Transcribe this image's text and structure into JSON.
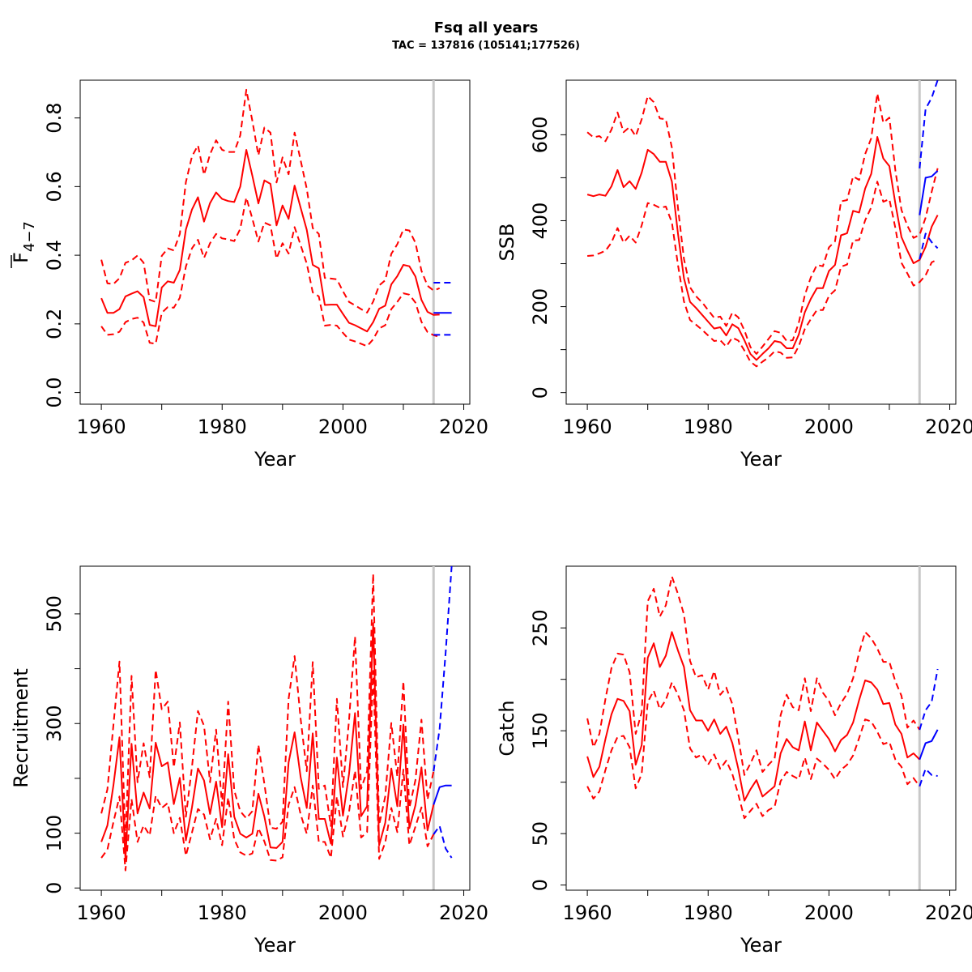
{
  "figure": {
    "title": "Fsq all years",
    "subtitle": "TAC = 137816 (105141;177526)"
  },
  "colors": {
    "history": "#ff0000",
    "forecast": "#0000ff",
    "vline": "#c8c8c8",
    "axis": "#000000"
  },
  "chart_data": [
    {
      "type": "line",
      "id": "fbar",
      "xlabel": "Year",
      "ylabel_main": "F",
      "ylabel_sub": "4−7",
      "xlim": [
        1956.5,
        2021
      ],
      "ylim": [
        -0.034,
        0.91
      ],
      "xticks": [
        "1960",
        "1980",
        "2000",
        "2020"
      ],
      "xtick_values": [
        1960,
        1980,
        2000,
        2020
      ],
      "minor_xticks": [
        1970,
        1990,
        2010
      ],
      "yticks": [
        "0.0",
        "0.2",
        "0.4",
        "0.6",
        "0.8"
      ],
      "ytick_values": [
        0,
        0.2,
        0.4,
        0.6,
        0.8
      ],
      "vline": 2015,
      "series": [
        {
          "role": "estimate",
          "x_start": 1960,
          "values": [
            0.275,
            0.232,
            0.232,
            0.243,
            0.28,
            0.288,
            0.295,
            0.278,
            0.197,
            0.193,
            0.306,
            0.324,
            0.32,
            0.357,
            0.475,
            0.533,
            0.569,
            0.498,
            0.552,
            0.583,
            0.564,
            0.558,
            0.555,
            0.6,
            0.707,
            0.632,
            0.551,
            0.618,
            0.608,
            0.487,
            0.545,
            0.506,
            0.603,
            0.538,
            0.474,
            0.372,
            0.362,
            0.255,
            0.256,
            0.256,
            0.229,
            0.203,
            0.196,
            0.187,
            0.178,
            0.205,
            0.244,
            0.253,
            0.315,
            0.339,
            0.372,
            0.368,
            0.338,
            0.27,
            0.235,
            0.226,
            0.227
          ]
        },
        {
          "role": "upper",
          "x_start": 1960,
          "values": [
            0.387,
            0.318,
            0.316,
            0.333,
            0.378,
            0.385,
            0.399,
            0.378,
            0.27,
            0.264,
            0.398,
            0.42,
            0.414,
            0.462,
            0.613,
            0.688,
            0.72,
            0.634,
            0.694,
            0.735,
            0.707,
            0.701,
            0.701,
            0.749,
            0.882,
            0.792,
            0.691,
            0.772,
            0.757,
            0.612,
            0.685,
            0.636,
            0.757,
            0.676,
            0.594,
            0.479,
            0.462,
            0.334,
            0.332,
            0.33,
            0.295,
            0.264,
            0.254,
            0.243,
            0.233,
            0.265,
            0.312,
            0.327,
            0.404,
            0.432,
            0.475,
            0.472,
            0.436,
            0.355,
            0.311,
            0.297,
            0.304
          ]
        },
        {
          "role": "lower",
          "x_start": 1960,
          "values": [
            0.193,
            0.168,
            0.17,
            0.177,
            0.205,
            0.214,
            0.218,
            0.204,
            0.145,
            0.142,
            0.232,
            0.249,
            0.247,
            0.276,
            0.367,
            0.42,
            0.445,
            0.392,
            0.435,
            0.462,
            0.449,
            0.446,
            0.441,
            0.477,
            0.568,
            0.507,
            0.44,
            0.495,
            0.487,
            0.39,
            0.435,
            0.405,
            0.482,
            0.429,
            0.376,
            0.292,
            0.28,
            0.195,
            0.197,
            0.195,
            0.174,
            0.154,
            0.149,
            0.142,
            0.135,
            0.155,
            0.187,
            0.196,
            0.243,
            0.264,
            0.289,
            0.285,
            0.262,
            0.206,
            0.176,
            0.167,
            0.162
          ]
        },
        {
          "role": "forecast",
          "x": [
            2015,
            2016,
            2017,
            2018
          ],
          "values": [
            0.232,
            0.232,
            0.232,
            0.232
          ]
        },
        {
          "role": "forecast_upper",
          "x": [
            2015,
            2016,
            2017,
            2018
          ],
          "values": [
            0.32,
            0.32,
            0.32,
            0.32
          ]
        },
        {
          "role": "forecast_lower",
          "x": [
            2015,
            2016,
            2017,
            2018
          ],
          "values": [
            0.168,
            0.168,
            0.168,
            0.168
          ]
        }
      ]
    },
    {
      "type": "line",
      "id": "ssb",
      "xlabel": "Year",
      "ylabel_main": "SSB",
      "xlim": [
        1956.5,
        2021
      ],
      "ylim": [
        -27,
        727
      ],
      "xticks": [
        "1960",
        "1980",
        "2000",
        "2020"
      ],
      "xtick_values": [
        1960,
        1980,
        2000,
        2020
      ],
      "minor_xticks": [
        1970,
        1990,
        2010
      ],
      "yticks": [
        "0",
        "200",
        "400",
        "600"
      ],
      "ytick_values": [
        0,
        200,
        400,
        600
      ],
      "minor_yticks": [
        100,
        300,
        500
      ],
      "vline": 2015,
      "series": [
        {
          "role": "estimate",
          "x_start": 1960,
          "values": [
            461,
            457,
            461,
            458,
            480,
            518,
            478,
            492,
            474,
            512,
            565,
            555,
            537,
            537,
            491,
            370,
            266,
            211,
            197,
            181,
            165,
            149,
            152,
            133,
            159,
            150,
            122,
            90,
            76,
            90,
            103,
            120,
            117,
            103,
            103,
            135,
            187,
            218,
            243,
            243,
            283,
            297,
            366,
            371,
            423,
            419,
            475,
            509,
            595,
            545,
            527,
            440,
            362,
            330,
            301,
            309,
            339,
            386,
            413
          ]
        },
        {
          "role": "upper",
          "x_start": 1960,
          "values": [
            606,
            594,
            597,
            585,
            612,
            652,
            606,
            618,
            597,
            636,
            690,
            676,
            638,
            636,
            570,
            430,
            311,
            245,
            224,
            210,
            192,
            174,
            177,
            155,
            186,
            175,
            145,
            106,
            90,
            107,
            125,
            143,
            139,
            120,
            122,
            162,
            227,
            268,
            297,
            294,
            338,
            352,
            445,
            448,
            503,
            495,
            555,
            592,
            696,
            628,
            640,
            517,
            425,
            388,
            360,
            367,
            407,
            467,
            522
          ]
        },
        {
          "role": "lower",
          "x_start": 1960,
          "values": [
            318,
            319,
            324,
            330,
            349,
            383,
            349,
            365,
            349,
            389,
            441,
            437,
            430,
            433,
            396,
            297,
            212,
            169,
            158,
            146,
            133,
            120,
            122,
            107,
            128,
            121,
            98,
            72,
            61,
            72,
            82,
            96,
            93,
            81,
            82,
            108,
            148,
            171,
            192,
            192,
            225,
            238,
            293,
            298,
            354,
            355,
            401,
            431,
            491,
            444,
            450,
            383,
            302,
            277,
            249,
            257,
            273,
            303,
            310
          ]
        },
        {
          "role": "forecast",
          "x": [
            2015,
            2016,
            2017,
            2018
          ],
          "values": [
            413,
            500,
            503,
            516
          ]
        },
        {
          "role": "forecast_upper",
          "x": [
            2015,
            2016,
            2017,
            2018
          ],
          "values": [
            522,
            660,
            686,
            727
          ]
        },
        {
          "role": "forecast_lower",
          "x": [
            2015,
            2016,
            2017,
            2018
          ],
          "values": [
            310,
            370,
            350,
            336
          ]
        }
      ]
    },
    {
      "type": "line",
      "id": "recruitment",
      "xlabel": "Year",
      "ylabel_main": "Recruitment",
      "xlim": [
        1956.5,
        2021
      ],
      "ylim": [
        -4,
        587
      ],
      "xticks": [
        "1960",
        "1980",
        "2000",
        "2020"
      ],
      "xtick_values": [
        1960,
        1980,
        2000,
        2020
      ],
      "minor_xticks": [
        1970,
        1990,
        2010
      ],
      "yticks": [
        "0",
        "100",
        "300",
        "500"
      ],
      "ytick_values": [
        0,
        100,
        300,
        500
      ],
      "minor_yticks": [
        200,
        400
      ],
      "vline": 2015,
      "series": [
        {
          "role": "estimate",
          "x_start": 1960,
          "values": [
            84,
            114,
            187,
            275,
            53,
            263,
            136,
            174,
            145,
            265,
            222,
            229,
            153,
            201,
            87,
            147,
            218,
            196,
            135,
            194,
            111,
            244,
            130,
            99,
            92,
            99,
            172,
            130,
            74,
            73,
            84,
            229,
            284,
            202,
            146,
            282,
            126,
            126,
            81,
            238,
            132,
            208,
            319,
            131,
            149,
            483,
            78,
            119,
            218,
            149,
            298,
            109,
            151,
            220,
            105,
            152
          ]
        },
        {
          "role": "upper",
          "x_start": 1960,
          "values": [
            136,
            180,
            297,
            413,
            84,
            387,
            193,
            264,
            202,
            398,
            326,
            340,
            220,
            302,
            130,
            221,
            323,
            296,
            193,
            289,
            150,
            340,
            178,
            140,
            127,
            140,
            261,
            190,
            110,
            108,
            121,
            345,
            423,
            308,
            213,
            412,
            181,
            187,
            113,
            345,
            184,
            306,
            459,
            181,
            213,
            573,
            115,
            167,
            301,
            203,
            377,
            146,
            197,
            307,
            161,
            213
          ]
        },
        {
          "role": "lower",
          "x_start": 1960,
          "values": [
            55,
            70,
            120,
            167,
            32,
            162,
            84,
            114,
            96,
            168,
            146,
            155,
            100,
            128,
            59,
            101,
            144,
            134,
            89,
            126,
            78,
            165,
            89,
            65,
            59,
            63,
            109,
            85,
            51,
            50,
            56,
            152,
            184,
            134,
            99,
            187,
            84,
            84,
            55,
            167,
            94,
            139,
            214,
            92,
            102,
            396,
            53,
            83,
            146,
            102,
            216,
            78,
            112,
            147,
            76,
            98
          ]
        },
        {
          "role": "forecast",
          "x": [
            2015,
            2016,
            2017,
            2018
          ],
          "values": [
            152,
            184,
            187,
            187
          ]
        },
        {
          "role": "forecast_upper",
          "x": [
            2015,
            2016,
            2017,
            2018
          ],
          "values": [
            213,
            290,
            430,
            587
          ]
        },
        {
          "role": "forecast_lower",
          "x": [
            2015,
            2016,
            2017,
            2018
          ],
          "values": [
            98,
            113,
            72,
            55
          ]
        }
      ]
    },
    {
      "type": "line",
      "id": "catch",
      "xlabel": "Year",
      "ylabel_main": "Catch",
      "xlim": [
        1956.5,
        2021
      ],
      "ylim": [
        -5,
        310
      ],
      "xticks": [
        "1960",
        "1980",
        "2000",
        "2020"
      ],
      "xtick_values": [
        1960,
        1980,
        2000,
        2020
      ],
      "minor_xticks": [
        1970,
        1990,
        2010
      ],
      "yticks": [
        "0",
        "50",
        "150",
        "250"
      ],
      "ytick_values": [
        0,
        50,
        150,
        250
      ],
      "minor_yticks": [
        100,
        200
      ],
      "vline": 2015,
      "series": [
        {
          "role": "estimate",
          "x_start": 1960,
          "values": [
            125,
            105,
            115,
            142,
            166,
            181,
            179,
            169,
            117,
            136,
            221,
            235,
            212,
            223,
            246,
            228,
            212,
            170,
            160,
            160,
            150,
            161,
            147,
            154,
            138,
            113,
            82,
            93,
            102,
            86,
            91,
            96,
            128,
            142,
            134,
            131,
            159,
            131,
            158,
            150,
            142,
            130,
            141,
            146,
            158,
            180,
            199,
            197,
            190,
            176,
            177,
            156,
            147,
            124,
            128,
            122
          ]
        },
        {
          "role": "upper",
          "x_start": 1960,
          "values": [
            162,
            134,
            147,
            181,
            211,
            225,
            224,
            207,
            147,
            168,
            276,
            288,
            261,
            272,
            300,
            283,
            263,
            218,
            202,
            204,
            190,
            208,
            185,
            192,
            176,
            143,
            107,
            118,
            131,
            110,
            117,
            123,
            165,
            185,
            173,
            170,
            201,
            169,
            201,
            187,
            179,
            165,
            177,
            186,
            201,
            226,
            246,
            240,
            230,
            217,
            217,
            198,
            184,
            153,
            160,
            151
          ]
        },
        {
          "role": "lower",
          "x_start": 1960,
          "values": [
            96,
            84,
            91,
            112,
            131,
            144,
            145,
            134,
            94,
            108,
            178,
            189,
            171,
            180,
            197,
            185,
            170,
            133,
            124,
            127,
            117,
            127,
            113,
            121,
            108,
            88,
            65,
            72,
            79,
            67,
            73,
            76,
            101,
            110,
            106,
            103,
            124,
            103,
            123,
            118,
            112,
            103,
            112,
            117,
            126,
            143,
            161,
            159,
            149,
            137,
            139,
            122,
            115,
            98,
            104,
            96
          ]
        },
        {
          "role": "forecast",
          "x": [
            2015,
            2016,
            2017,
            2018
          ],
          "values": [
            122,
            138,
            140,
            151
          ]
        },
        {
          "role": "forecast_upper",
          "x": [
            2015,
            2016,
            2017,
            2018
          ],
          "values": [
            151,
            170,
            178,
            210
          ]
        },
        {
          "role": "forecast_lower",
          "x": [
            2015,
            2016,
            2017,
            2018
          ],
          "values": [
            96,
            113,
            107,
            106
          ]
        }
      ]
    }
  ]
}
